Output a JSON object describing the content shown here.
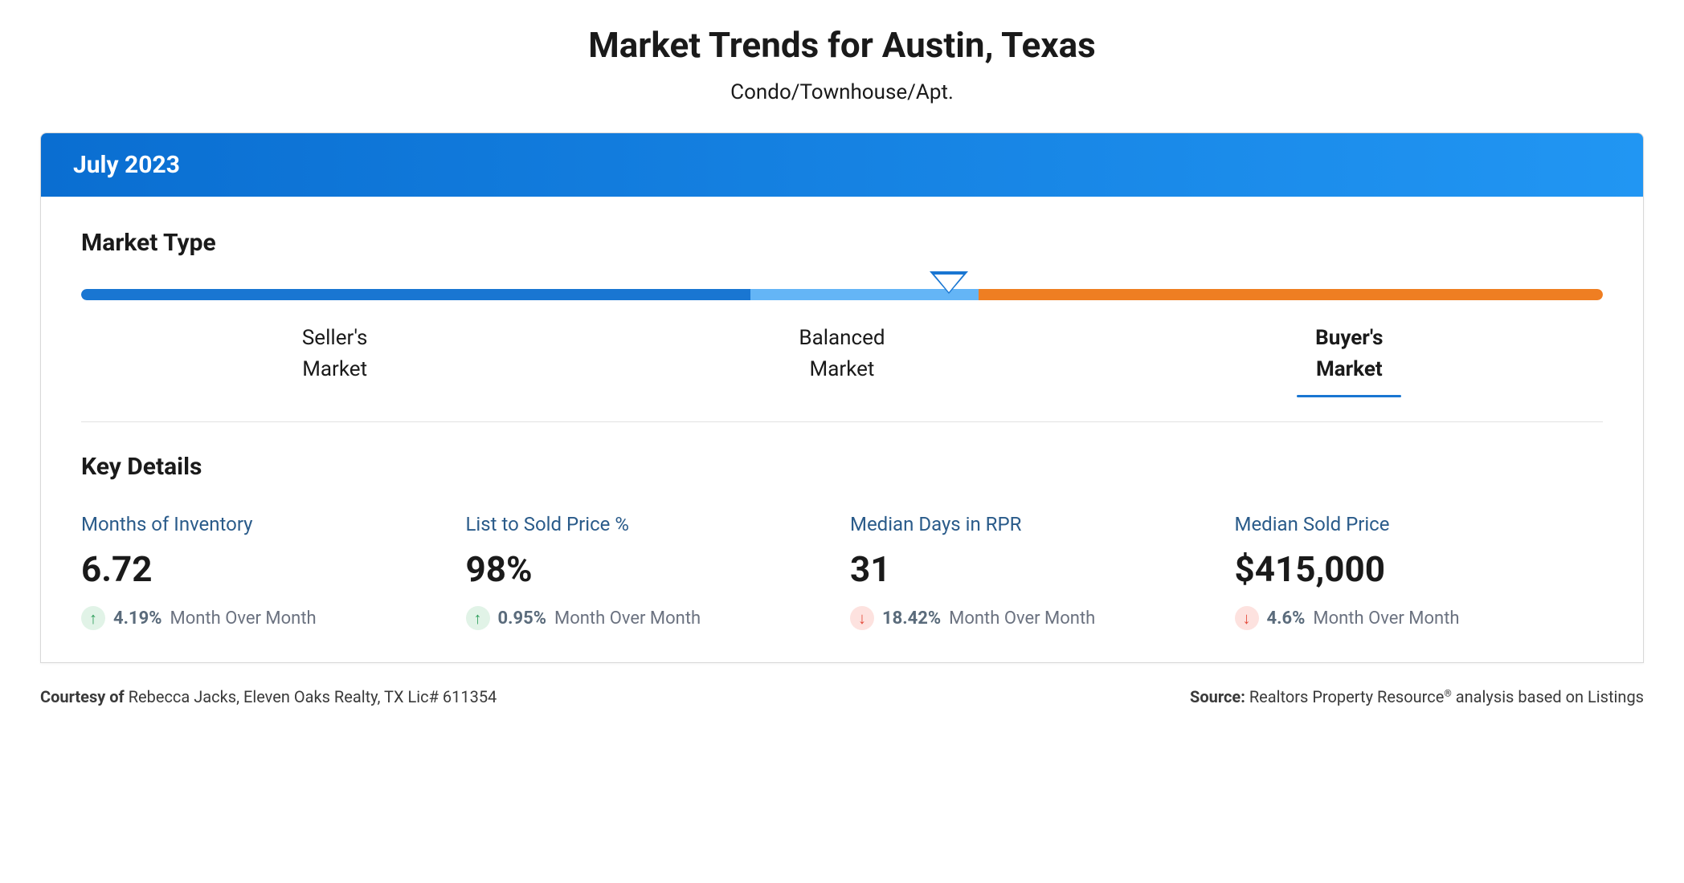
{
  "header": {
    "title": "Market Trends for Austin, Texas",
    "subtitle": "Condo/Townhouse/Apt."
  },
  "date_banner": {
    "label": "July 2023",
    "gradient_start": "#0a6ed1",
    "gradient_end": "#2196f3"
  },
  "market_type": {
    "section_title": "Market Type",
    "segments": [
      {
        "label_line1": "Seller's",
        "label_line2": "Market",
        "color": "#1976d2",
        "width_pct": 44
      },
      {
        "label_line1": "Balanced",
        "label_line2": "Market",
        "color": "#64b5f6",
        "width_pct": 15
      },
      {
        "label_line1": "Buyer's",
        "label_line2": "Market",
        "color": "#ef7e22",
        "width_pct": 41
      }
    ],
    "pointer_position_pct": 57,
    "pointer_border_color": "#1976d2",
    "active_index": 2,
    "underline_color": "#1976d2"
  },
  "key_details": {
    "section_title": "Key Details",
    "label_color": "#2a5b8a",
    "metrics": [
      {
        "label": "Months of Inventory",
        "value": "6.72",
        "change_pct": "4.19%",
        "period": "Month Over Month",
        "direction": "up",
        "icon_bg": "#e1f3e7",
        "icon_color": "#2e9e5b"
      },
      {
        "label": "List to Sold Price %",
        "value": "98%",
        "change_pct": "0.95%",
        "period": "Month Over Month",
        "direction": "up",
        "icon_bg": "#e1f3e7",
        "icon_color": "#2e9e5b"
      },
      {
        "label": "Median Days in RPR",
        "value": "31",
        "change_pct": "18.42%",
        "period": "Month Over Month",
        "direction": "down",
        "icon_bg": "#fde2df",
        "icon_color": "#e44b3b"
      },
      {
        "label": "Median Sold Price",
        "value": "$415,000",
        "change_pct": "4.6%",
        "period": "Month Over Month",
        "direction": "down",
        "icon_bg": "#fde2df",
        "icon_color": "#e44b3b"
      }
    ]
  },
  "footer": {
    "courtesy_prefix": "Courtesy of ",
    "courtesy_text": "Rebecca Jacks, Eleven Oaks Realty, TX Lic# 611354",
    "source_prefix": "Source: ",
    "source_text_1": "Realtors Property Resource",
    "source_text_2": " analysis based on Listings"
  }
}
